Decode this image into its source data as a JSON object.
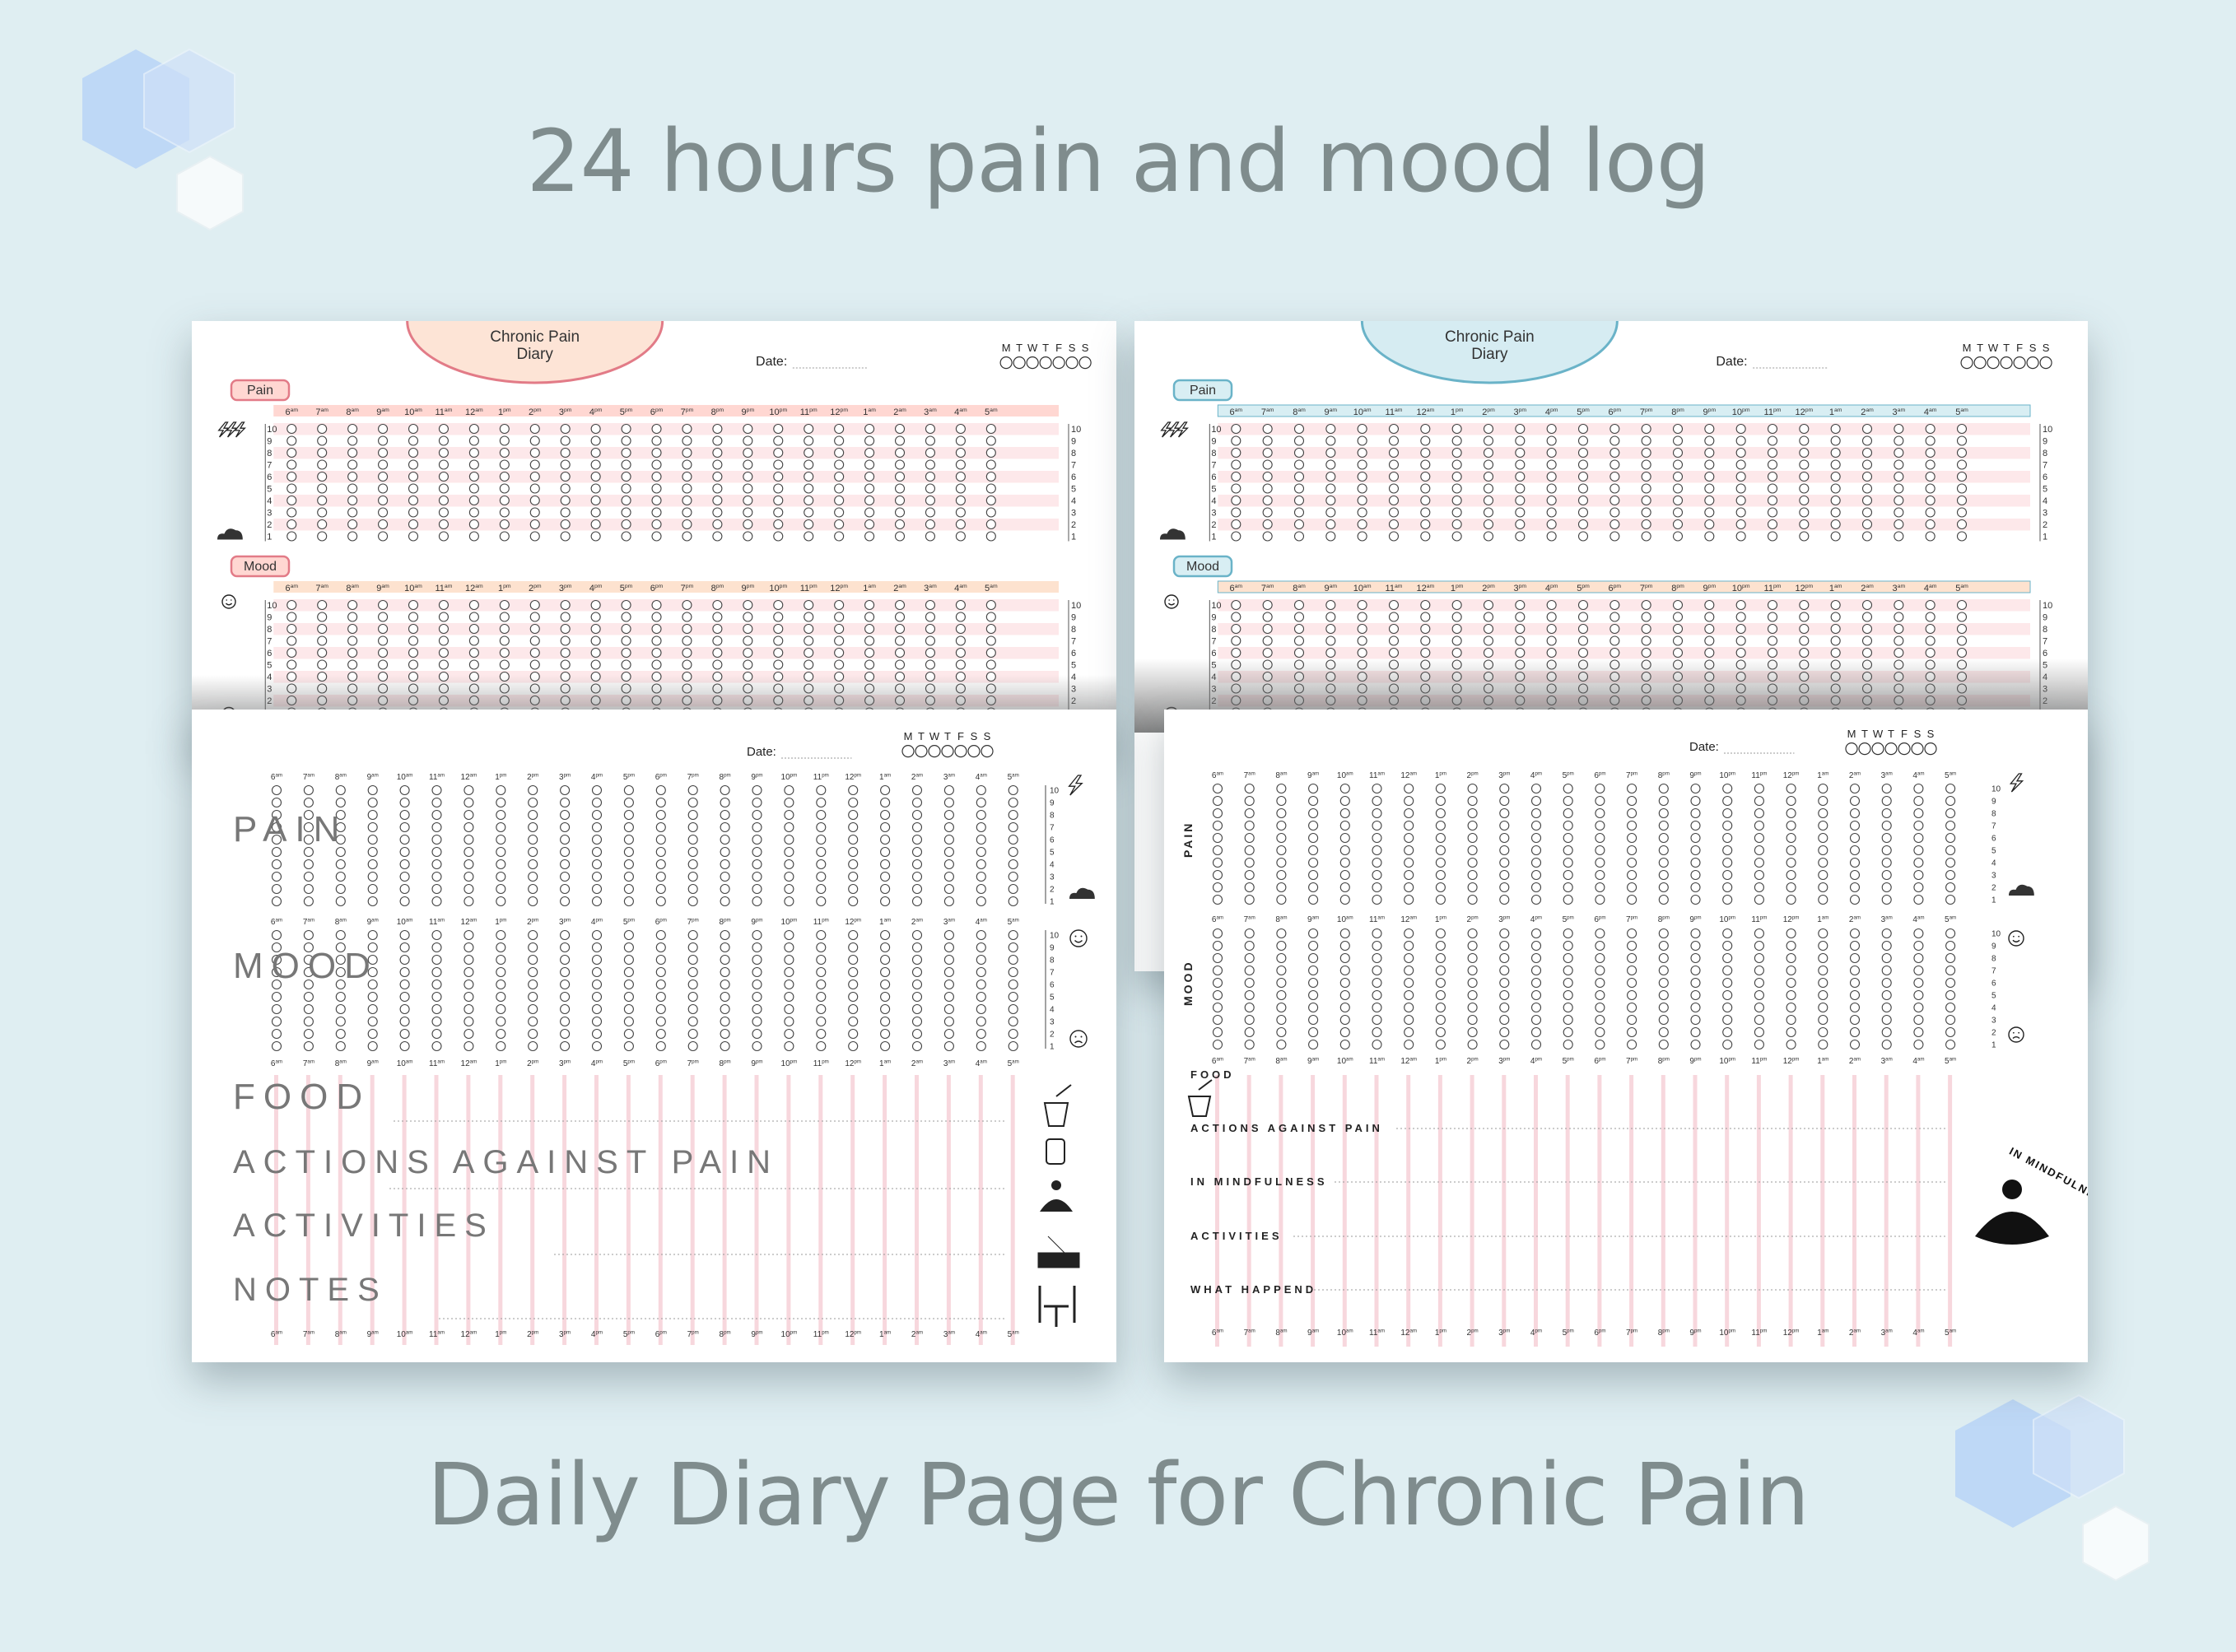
{
  "headline_top": "24 hours pain and mood log",
  "headline_bottom": "Daily Diary Page for Chronic Pain",
  "hours": [
    {
      "n": "6",
      "s": "am"
    },
    {
      "n": "7",
      "s": "am"
    },
    {
      "n": "8",
      "s": "am"
    },
    {
      "n": "9",
      "s": "am"
    },
    {
      "n": "10",
      "s": "am"
    },
    {
      "n": "11",
      "s": "am"
    },
    {
      "n": "12",
      "s": "am"
    },
    {
      "n": "1",
      "s": "pm"
    },
    {
      "n": "2",
      "s": "pm"
    },
    {
      "n": "3",
      "s": "pm"
    },
    {
      "n": "4",
      "s": "pm"
    },
    {
      "n": "5",
      "s": "pm"
    },
    {
      "n": "6",
      "s": "pm"
    },
    {
      "n": "7",
      "s": "pm"
    },
    {
      "n": "8",
      "s": "pm"
    },
    {
      "n": "9",
      "s": "pm"
    },
    {
      "n": "10",
      "s": "pm"
    },
    {
      "n": "11",
      "s": "pm"
    },
    {
      "n": "12",
      "s": "pm"
    },
    {
      "n": "1",
      "s": "am"
    },
    {
      "n": "2",
      "s": "am"
    },
    {
      "n": "3",
      "s": "am"
    },
    {
      "n": "4",
      "s": "am"
    },
    {
      "n": "5",
      "s": "am"
    }
  ],
  "scale": [
    "10",
    "9",
    "8",
    "7",
    "6",
    "5",
    "4",
    "3",
    "2",
    "1"
  ],
  "weekdays": [
    "M",
    "T",
    "W",
    "T",
    "F",
    "S",
    "S"
  ],
  "date_label": "Date:",
  "pages": {
    "top_left": {
      "title_line1": "Chronic Pain",
      "title_line2": "Diary",
      "pain_label": "Pain",
      "mood_label": "Mood",
      "accent": "#e27b87",
      "band": "#fbd3d6",
      "header": "#ffd7d2",
      "header_mood": "#fde2cf",
      "oval": "#fde4d6"
    },
    "top_right": {
      "title_line1": "Chronic Pain",
      "title_line2": "Diary",
      "pain_label": "Pain",
      "mood_label": "Mood",
      "accent": "#6ab3c8",
      "band": "#fbd3d6",
      "header": "#d8eef3",
      "header_mood": "#fde2cf",
      "oval": "#d6ecf2"
    },
    "bottom_left": {
      "sections": [
        "PAIN",
        "MOOD",
        "FOOD",
        "ACTIONS AGAINST PAIN",
        "ACTIVITIES",
        "NOTES"
      ]
    },
    "bottom_right": {
      "side_pain": "PAIN",
      "side_mood": "MOOD",
      "sections": [
        "FOOD",
        "ACTIONS AGAINST PAIN",
        "IN MINDFULNESS",
        "ACTIVITIES",
        "WHAT HAPPEND"
      ],
      "badge_text": "IN MINDFULNESS"
    }
  }
}
